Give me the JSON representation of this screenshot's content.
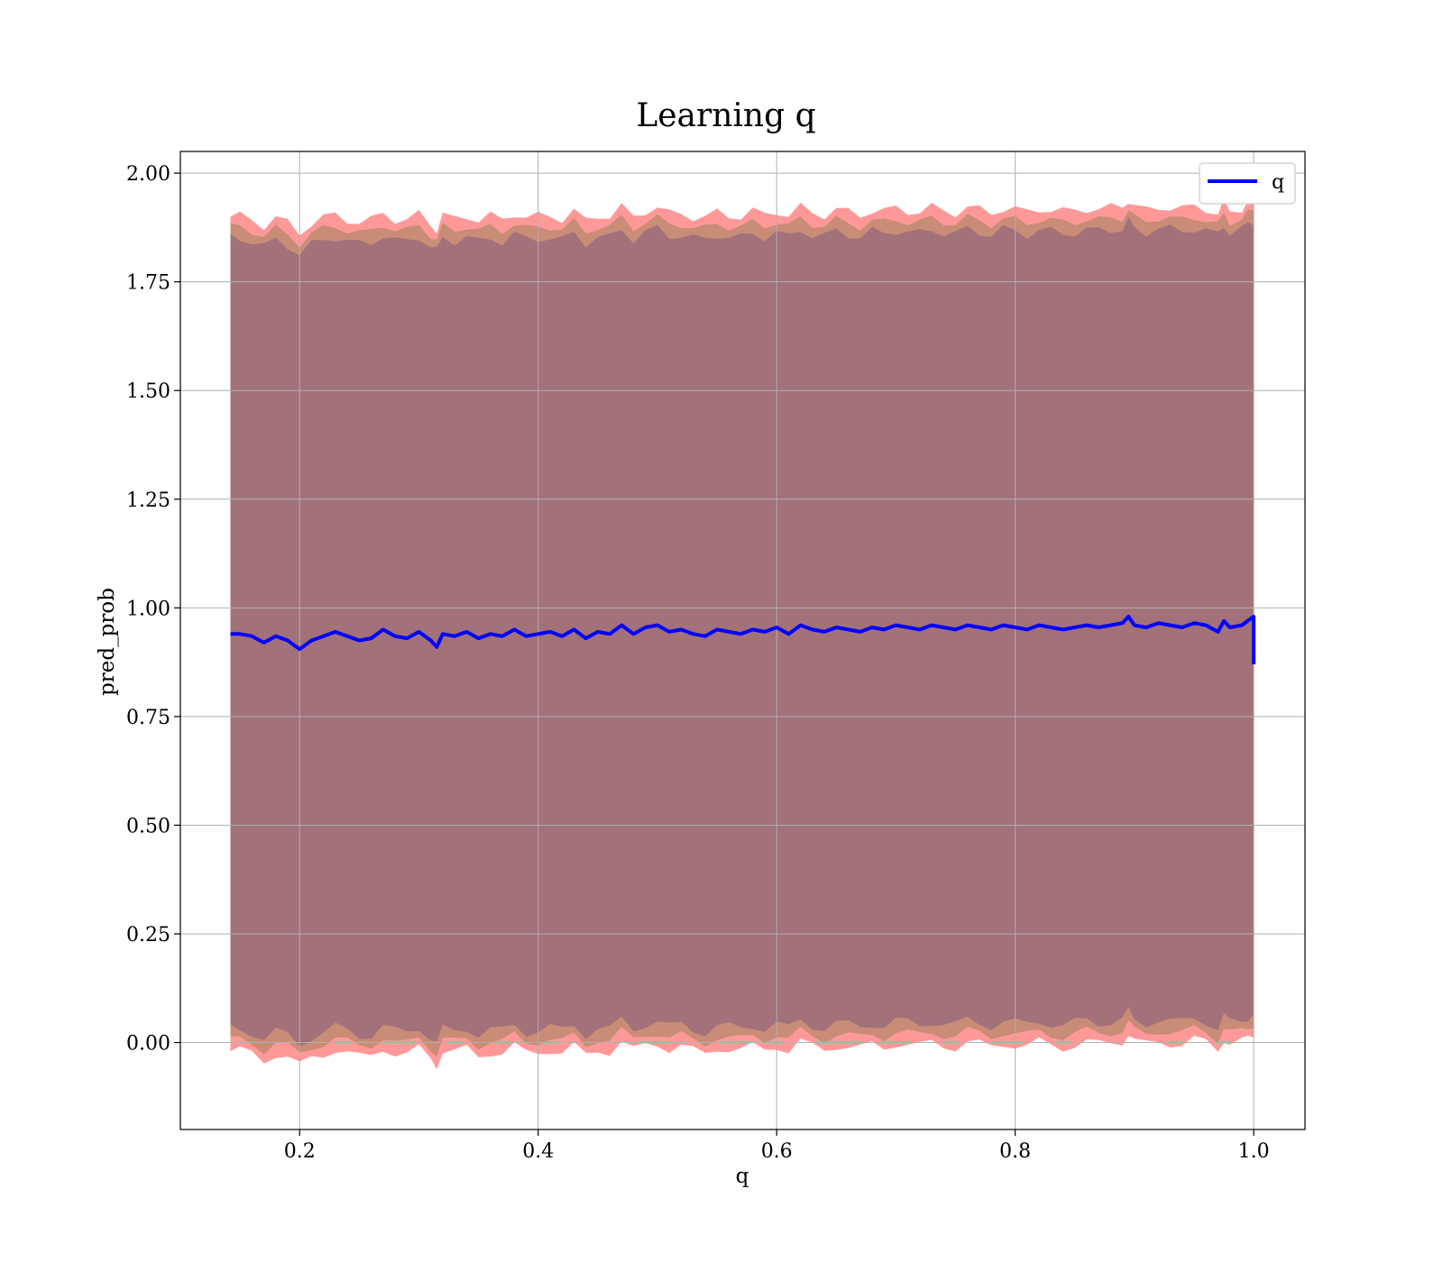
{
  "chart_data": {
    "type": "line",
    "title": "Learning q",
    "xlabel": "q",
    "ylabel": "pred_prob",
    "xlim": [
      0.1,
      1.043
    ],
    "ylim": [
      -0.2,
      2.05
    ],
    "x_ticks": [
      0.2,
      0.4,
      0.6,
      0.8,
      1.0
    ],
    "x_tick_labels": [
      "0.2",
      "0.4",
      "0.6",
      "0.8",
      "1.0"
    ],
    "y_ticks": [
      0.0,
      0.25,
      0.5,
      0.75,
      1.0,
      1.25,
      1.5,
      1.75,
      2.0
    ],
    "y_tick_labels": [
      "0.00",
      "0.25",
      "0.50",
      "0.75",
      "1.00",
      "1.25",
      "1.50",
      "1.75",
      "2.00"
    ],
    "grid": true,
    "legend": {
      "position": "top-right",
      "entries": [
        {
          "label": "q",
          "color": "#0000ff"
        }
      ]
    },
    "series": [
      {
        "name": "q",
        "color": "#0000ff",
        "x": [
          0.142,
          0.15,
          0.16,
          0.17,
          0.18,
          0.19,
          0.2,
          0.21,
          0.22,
          0.23,
          0.24,
          0.25,
          0.26,
          0.27,
          0.28,
          0.29,
          0.3,
          0.31,
          0.315,
          0.32,
          0.33,
          0.34,
          0.35,
          0.36,
          0.37,
          0.38,
          0.39,
          0.4,
          0.41,
          0.42,
          0.43,
          0.44,
          0.45,
          0.46,
          0.47,
          0.48,
          0.49,
          0.5,
          0.51,
          0.52,
          0.53,
          0.54,
          0.55,
          0.56,
          0.57,
          0.58,
          0.59,
          0.6,
          0.61,
          0.62,
          0.63,
          0.64,
          0.65,
          0.66,
          0.67,
          0.68,
          0.69,
          0.7,
          0.71,
          0.72,
          0.73,
          0.74,
          0.75,
          0.76,
          0.77,
          0.78,
          0.79,
          0.8,
          0.81,
          0.82,
          0.83,
          0.84,
          0.85,
          0.86,
          0.87,
          0.88,
          0.89,
          0.895,
          0.9,
          0.91,
          0.92,
          0.93,
          0.94,
          0.95,
          0.96,
          0.97,
          0.975,
          0.98,
          0.99,
          0.995,
          1.0,
          1.0
        ],
        "y": [
          0.94,
          0.94,
          0.935,
          0.92,
          0.935,
          0.925,
          0.905,
          0.925,
          0.935,
          0.945,
          0.935,
          0.925,
          0.93,
          0.95,
          0.935,
          0.93,
          0.945,
          0.925,
          0.91,
          0.94,
          0.935,
          0.945,
          0.93,
          0.94,
          0.935,
          0.95,
          0.935,
          0.94,
          0.945,
          0.935,
          0.95,
          0.93,
          0.945,
          0.94,
          0.96,
          0.94,
          0.955,
          0.96,
          0.945,
          0.95,
          0.94,
          0.935,
          0.95,
          0.945,
          0.94,
          0.95,
          0.945,
          0.955,
          0.94,
          0.96,
          0.95,
          0.945,
          0.955,
          0.95,
          0.945,
          0.955,
          0.95,
          0.96,
          0.955,
          0.95,
          0.96,
          0.955,
          0.95,
          0.96,
          0.955,
          0.95,
          0.96,
          0.955,
          0.95,
          0.96,
          0.955,
          0.95,
          0.955,
          0.96,
          0.955,
          0.96,
          0.965,
          0.98,
          0.96,
          0.955,
          0.965,
          0.96,
          0.955,
          0.965,
          0.96,
          0.945,
          0.97,
          0.955,
          0.96,
          0.97,
          0.98,
          0.87
        ]
      }
    ],
    "bands": [
      {
        "color": "#ff8080",
        "opacity": 0.8,
        "upper_offset": 0.96,
        "lower_offset": -0.96
      },
      {
        "color": "#c08a70",
        "opacity": 0.85,
        "upper_offset": 0.935,
        "lower_offset": -0.935
      },
      {
        "color": "#a2717a",
        "opacity": 1.0,
        "upper_offset": 0.91,
        "lower_offset": -0.91
      }
    ]
  }
}
